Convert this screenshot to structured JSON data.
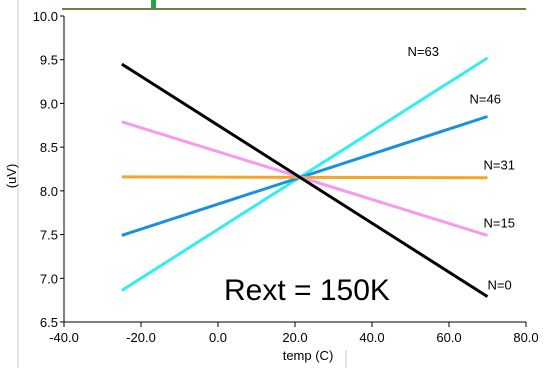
{
  "chart_data": {
    "type": "line",
    "title": "",
    "xlabel": "temp (C)",
    "ylabel": "(uV)",
    "xlim": [
      -40,
      80
    ],
    "ylim": [
      6.5,
      10.0
    ],
    "x_ticks": [
      "-40.0",
      "-20.0",
      "0.0",
      "20.0",
      "40.0",
      "60.0",
      "80.0"
    ],
    "y_ticks": [
      "6.5",
      "7.0",
      "7.5",
      "8.0",
      "8.5",
      "9.0",
      "9.5",
      "10.0"
    ],
    "x": [
      -25,
      70
    ],
    "series": [
      {
        "name": "N=63",
        "color": "#33eeee",
        "values": [
          6.86,
          9.52
        ]
      },
      {
        "name": "N=46",
        "color": "#1a90e0",
        "values": [
          7.49,
          8.85
        ]
      },
      {
        "name": "N=31",
        "color": "#f5a623",
        "values": [
          8.16,
          8.15
        ]
      },
      {
        "name": "N=15",
        "color": "#f799ee",
        "values": [
          8.79,
          7.49
        ]
      },
      {
        "name": "N=0",
        "color": "#000000",
        "values": [
          9.45,
          6.79
        ]
      }
    ],
    "annotations": [
      "Rext = 150K"
    ],
    "grid": false,
    "legend": "labels at line ends"
  },
  "decor": {
    "top_line_color": "#6b7f3f",
    "top_marker_color": "#2ea043"
  }
}
